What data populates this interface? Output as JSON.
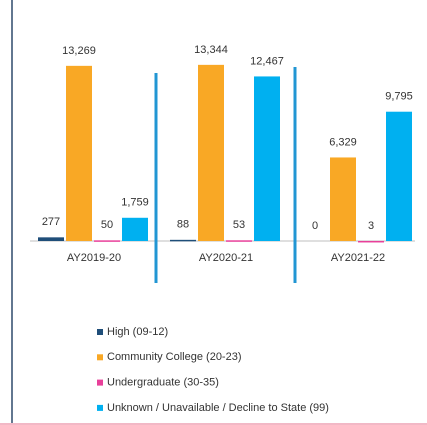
{
  "chart_data": {
    "type": "bar",
    "categories": [
      "AY2019-20",
      "AY2020-21",
      "AY2021-22"
    ],
    "series": [
      {
        "name": "High (09-12)",
        "color": "#1f4e79",
        "values": [
          277,
          88,
          0
        ]
      },
      {
        "name": "Community College (20-23)",
        "color": "#f9a825",
        "values": [
          13269,
          13344,
          6329
        ]
      },
      {
        "name": "Undergraduate (30-35)",
        "color": "#e8409a",
        "values": [
          50,
          53,
          3
        ]
      },
      {
        "name": "Unknown / Unavailable / Decline to State (99)",
        "color": "#00b0f0",
        "values": [
          1759,
          12467,
          9795
        ]
      }
    ],
    "value_labels": [
      [
        "277",
        "88",
        "0"
      ],
      [
        "13,269",
        "13,344",
        "6,329"
      ],
      [
        "50",
        "53",
        "3"
      ],
      [
        "1,759",
        "12,467",
        "9,795"
      ]
    ],
    "ylim": [
      0,
      15000
    ]
  }
}
